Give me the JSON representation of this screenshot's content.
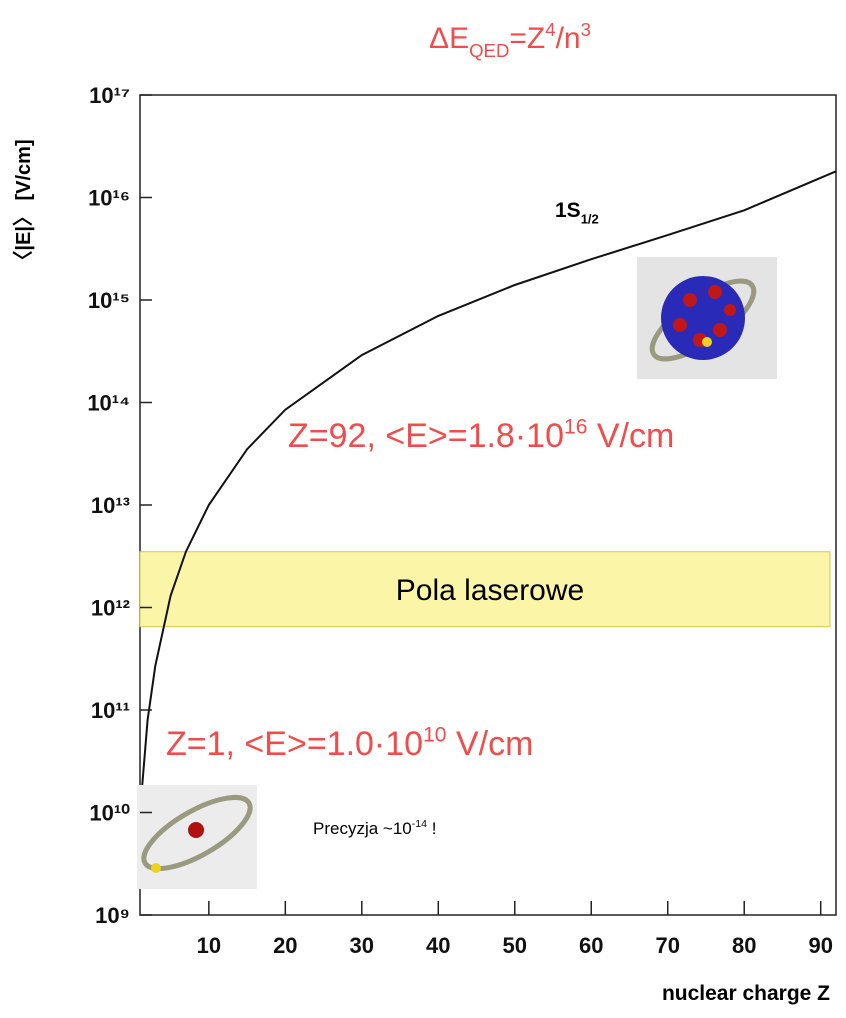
{
  "chart_data": {
    "type": "line",
    "title_parts": [
      {
        "text": "ΔE"
      },
      {
        "text": "QED",
        "sub": true
      },
      {
        "text": "=Z"
      },
      {
        "text": "4",
        "sup": true
      },
      {
        "text": "/n"
      },
      {
        "text": "3",
        "sup": true
      }
    ],
    "x_label": "nuclear charge Z",
    "y_label": "〈|E|〉 [V/cm]",
    "x": [
      1,
      2,
      3,
      5,
      7,
      10,
      15,
      20,
      30,
      40,
      50,
      60,
      70,
      80,
      92
    ],
    "values": [
      10000000000.0,
      80000000000.0,
      270000000000.0,
      1300000000000.0,
      3500000000000.0,
      10000000000000.0,
      35000000000000.0,
      85000000000000.0,
      290000000000000.0,
      700000000000000.0,
      1400000000000000.0,
      2500000000000000.0,
      4300000000000000.0,
      7500000000000000.0,
      1.8e+16
    ],
    "color": "#111111",
    "xlim": [
      1,
      92
    ],
    "xticks": [
      10,
      20,
      30,
      40,
      50,
      60,
      70,
      80,
      90
    ],
    "ylim": [
      1000000000.0,
      1e+17
    ],
    "ylog": true,
    "yticks": [
      {
        "value": 1000000000.0,
        "label": "10⁹"
      },
      {
        "value": 10000000000.0,
        "label": "10¹⁰"
      },
      {
        "value": 100000000000.0,
        "label": "10¹¹"
      },
      {
        "value": 1000000000000.0,
        "label": "10¹²"
      },
      {
        "value": 10000000000000.0,
        "label": "10¹³"
      },
      {
        "value": 100000000000000.0,
        "label": "10¹⁴"
      },
      {
        "value": 1000000000000000.0,
        "label": "10¹⁵"
      },
      {
        "value": 1e+16,
        "label": "10¹⁶"
      },
      {
        "value": 1e+17,
        "label": "10¹⁷"
      }
    ],
    "band": {
      "label": "Pola laserowe",
      "range": [
        650000000000.0,
        3500000000000.0
      ],
      "color": "#fbf5a8"
    },
    "curve_label_parts": [
      {
        "text": "1S"
      },
      {
        "text": "1/2",
        "sub": true
      }
    ],
    "annotations": [
      {
        "parts": [
          {
            "text": "Z=92, <E>=1.8·10"
          },
          {
            "text": "16",
            "sup": true
          },
          {
            "text": " V/cm"
          }
        ]
      },
      {
        "parts": [
          {
            "text": "Z=1, <E>=1.0·10"
          },
          {
            "text": "10",
            "sup": true
          },
          {
            "text": " V/cm"
          }
        ]
      },
      {
        "parts": [
          {
            "text": "Precyzja ~10"
          },
          {
            "text": "-14",
            "sup": true
          },
          {
            "text": " !"
          }
        ]
      }
    ]
  }
}
